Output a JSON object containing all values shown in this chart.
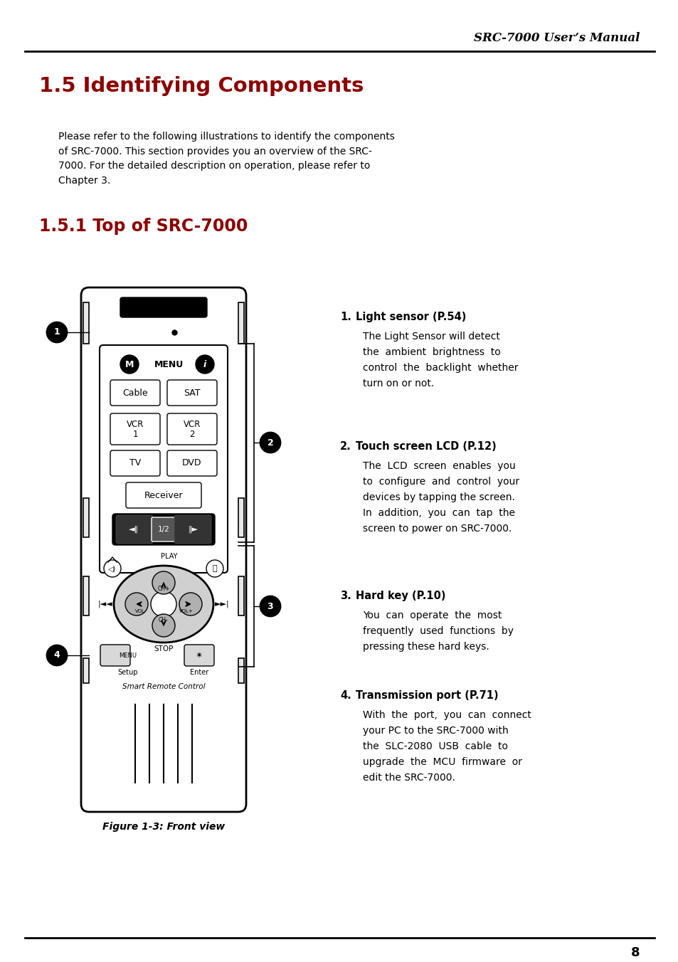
{
  "page_bg": "#ffffff",
  "header_text": "SRC-7000 User’s Manual",
  "header_font_size": 12,
  "header_color": "#000000",
  "title_main": "1.5 Identifying Components",
  "title_main_color": "#8B0000",
  "title_main_size": 21,
  "title_sub": "1.5.1 Top of SRC-7000",
  "title_sub_color": "#8B0000",
  "title_sub_size": 17,
  "body_para": "Please refer to the following illustrations to identify the components\nof SRC-7000. This section provides you an overview of the SRC-\n7000. For the detailed description on operation, please refer to\nChapter 3.",
  "items": [
    {
      "num": "1.",
      "heading": "Light sensor (P.54)",
      "body_lines": [
        "The Light Sensor will detect",
        "the  ambient  brightness  to",
        "control  the  backlight  whether",
        "turn on or not."
      ]
    },
    {
      "num": "2.",
      "heading": "Touch screen LCD (P.12)",
      "body_lines": [
        "The  LCD  screen  enables  you",
        "to  configure  and  control  your",
        "devices by tapping the screen.",
        "In  addition,  you  can  tap  the",
        "screen to power on SRC-7000."
      ]
    },
    {
      "num": "3.",
      "heading": "Hard key (P.10)",
      "body_lines": [
        "You  can  operate  the  most",
        "frequently  used  functions  by",
        "pressing these hard keys."
      ]
    },
    {
      "num": "4.",
      "heading": "Transmission port (P.71)",
      "body_lines": [
        "With  the  port,  you  can  connect",
        "your PC to the SRC-7000 with",
        "the  SLC-2080  USB  cable  to",
        "upgrade  the  MCU  firmware  or",
        "edit the SRC-7000."
      ]
    }
  ],
  "figure_caption": "Figure 1-3: Front view",
  "page_number": "8"
}
